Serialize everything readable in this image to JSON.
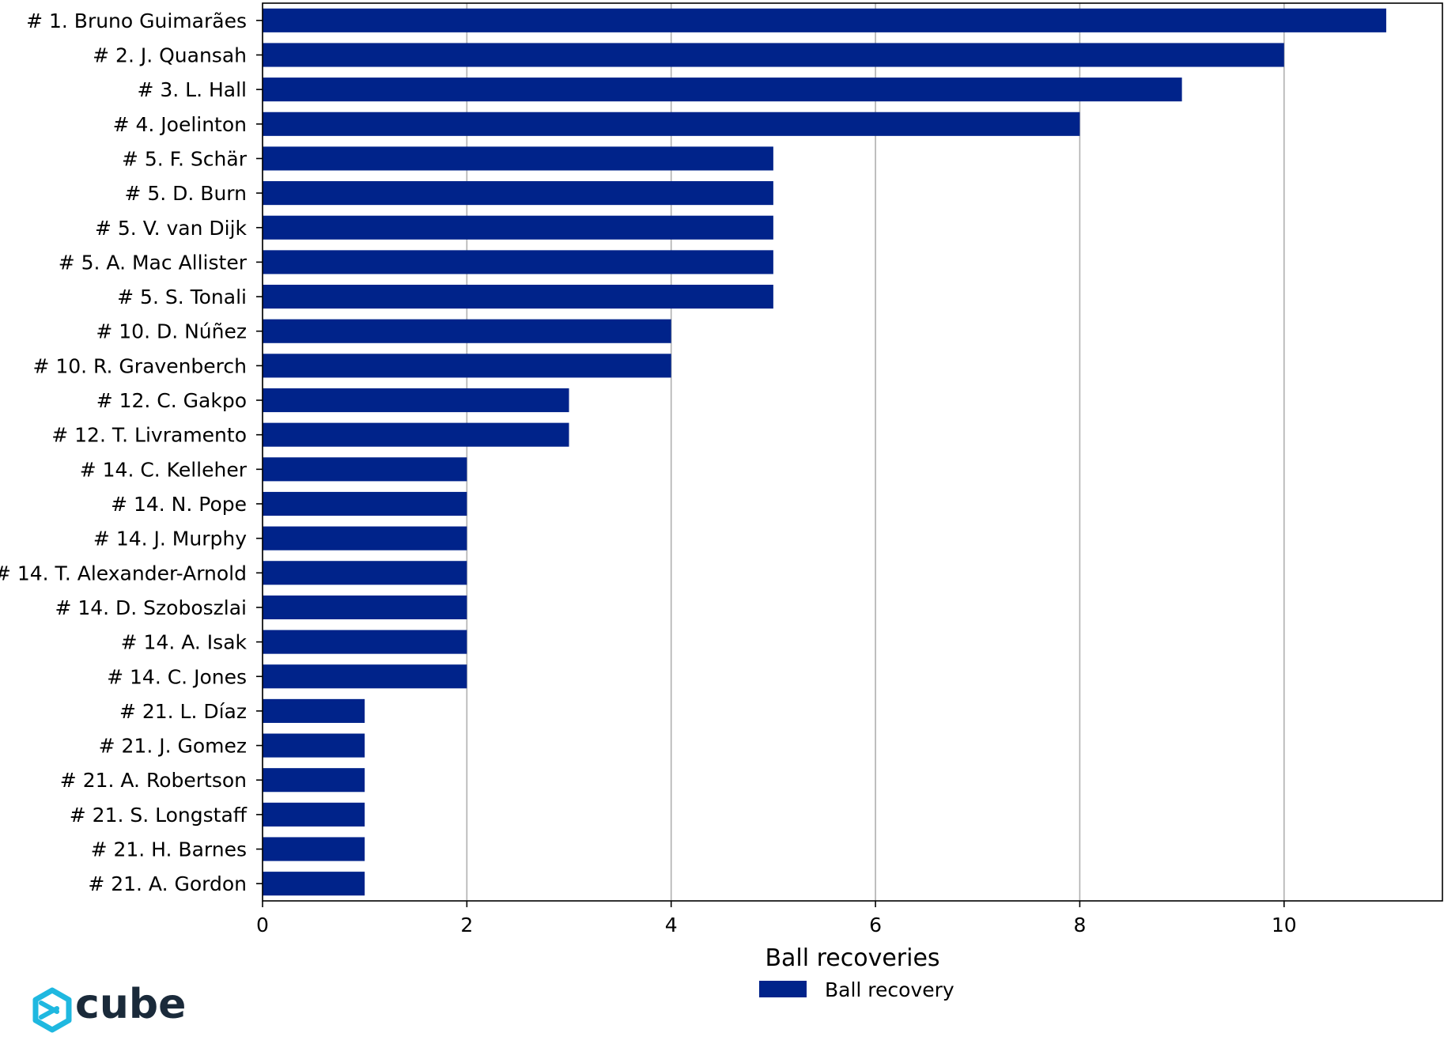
{
  "chart_data": {
    "type": "bar",
    "orientation": "horizontal",
    "categories": [
      "# 1.  Bruno Guimarães",
      "# 2.  J. Quansah",
      "# 3.  L. Hall",
      "# 4.  Joelinton",
      "# 5.  F. Schär",
      "# 5.  D. Burn",
      "# 5.  V. van Dijk",
      "# 5.  A. Mac Allister",
      "# 5.  S. Tonali",
      "# 10.  D. Núñez",
      "# 10.  R. Gravenberch",
      "# 12.  C. Gakpo",
      "# 12.  T. Livramento",
      "# 14.  C. Kelleher",
      "# 14.  N. Pope",
      "# 14.  J. Murphy",
      "# 14.  T. Alexander-Arnold",
      "# 14.  D. Szoboszlai",
      "# 14.  A. Isak",
      "# 14.  C. Jones",
      "# 21.  L. Díaz",
      "# 21.  J. Gomez",
      "# 21.  A. Robertson",
      "# 21.  S. Longstaff",
      "# 21.  H. Barnes",
      "# 21.  A. Gordon"
    ],
    "series": [
      {
        "name": "Ball recovery",
        "color": "#00238a",
        "values": [
          11,
          10,
          9,
          8,
          5,
          5,
          5,
          5,
          5,
          4,
          4,
          3,
          3,
          2,
          2,
          2,
          2,
          2,
          2,
          2,
          1,
          1,
          1,
          1,
          1,
          1
        ]
      }
    ],
    "xlabel": "Ball recoveries",
    "ylabel": "",
    "xlim": [
      0,
      11.55
    ],
    "xticks": [
      0,
      2,
      4,
      6,
      8,
      10
    ],
    "grid": "vertical",
    "legend": "bottom-center"
  },
  "logo": {
    "text": "cube",
    "icon": "cube-logo-icon",
    "color": "#1fb8e0"
  }
}
